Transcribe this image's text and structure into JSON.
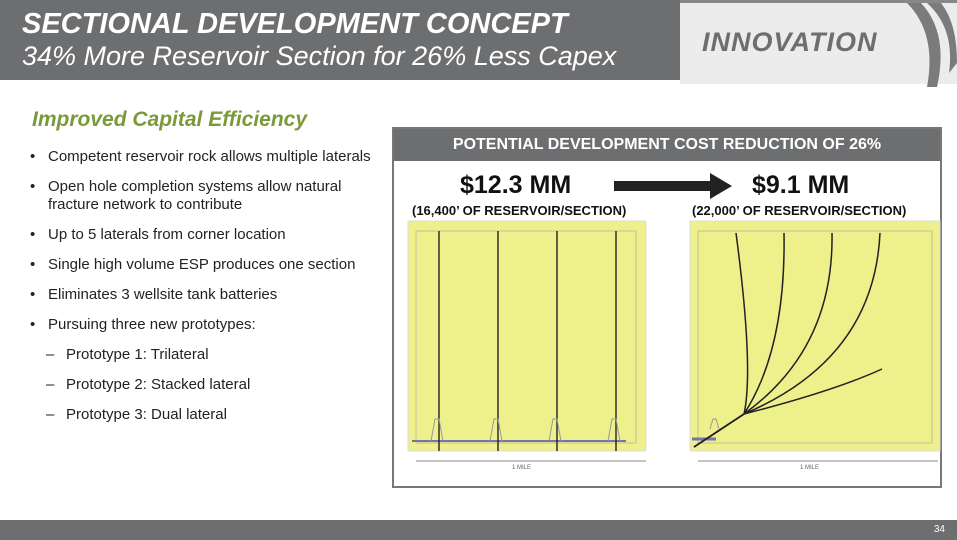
{
  "header": {
    "title": "SECTIONAL DEVELOPMENT CONCEPT",
    "subtitle": "34% More Reservoir Section for 26% Less Capex",
    "badge": "INNOVATION"
  },
  "section_title": "Improved Capital Efficiency",
  "bullets": [
    {
      "text": "Competent reservoir rock allows multiple laterals",
      "level": 1
    },
    {
      "text": "Open hole completion systems allow natural fracture network to contribute",
      "level": 1
    },
    {
      "text": "Up to 5 laterals from corner location",
      "level": 1
    },
    {
      "text": "Single high volume ESP produces one section",
      "level": 1
    },
    {
      "text": "Eliminates 3 wellsite tank batteries",
      "level": 1
    },
    {
      "text": "Pursuing three new prototypes:",
      "level": 1
    },
    {
      "text": "Prototype 1: Trilateral",
      "level": 2
    },
    {
      "text": "Prototype 2: Stacked lateral",
      "level": 2
    },
    {
      "text": "Prototype 3: Dual lateral",
      "level": 2
    }
  ],
  "figure": {
    "title": "POTENTIAL DEVELOPMENT COST REDUCTION OF 26%",
    "left": {
      "cost": "$12.3 MM",
      "reservoir": "(16,400’ OF RESERVOIR/SECTION)",
      "scale": "1 MILE"
    },
    "right": {
      "cost": "$9.1 MM",
      "reservoir": "(22,000’ OF RESERVOIR/SECTION)",
      "scale": "1 MILE"
    },
    "colors": {
      "panel": "#eef08c",
      "header": "#6d6e70"
    }
  },
  "page_number": "34"
}
